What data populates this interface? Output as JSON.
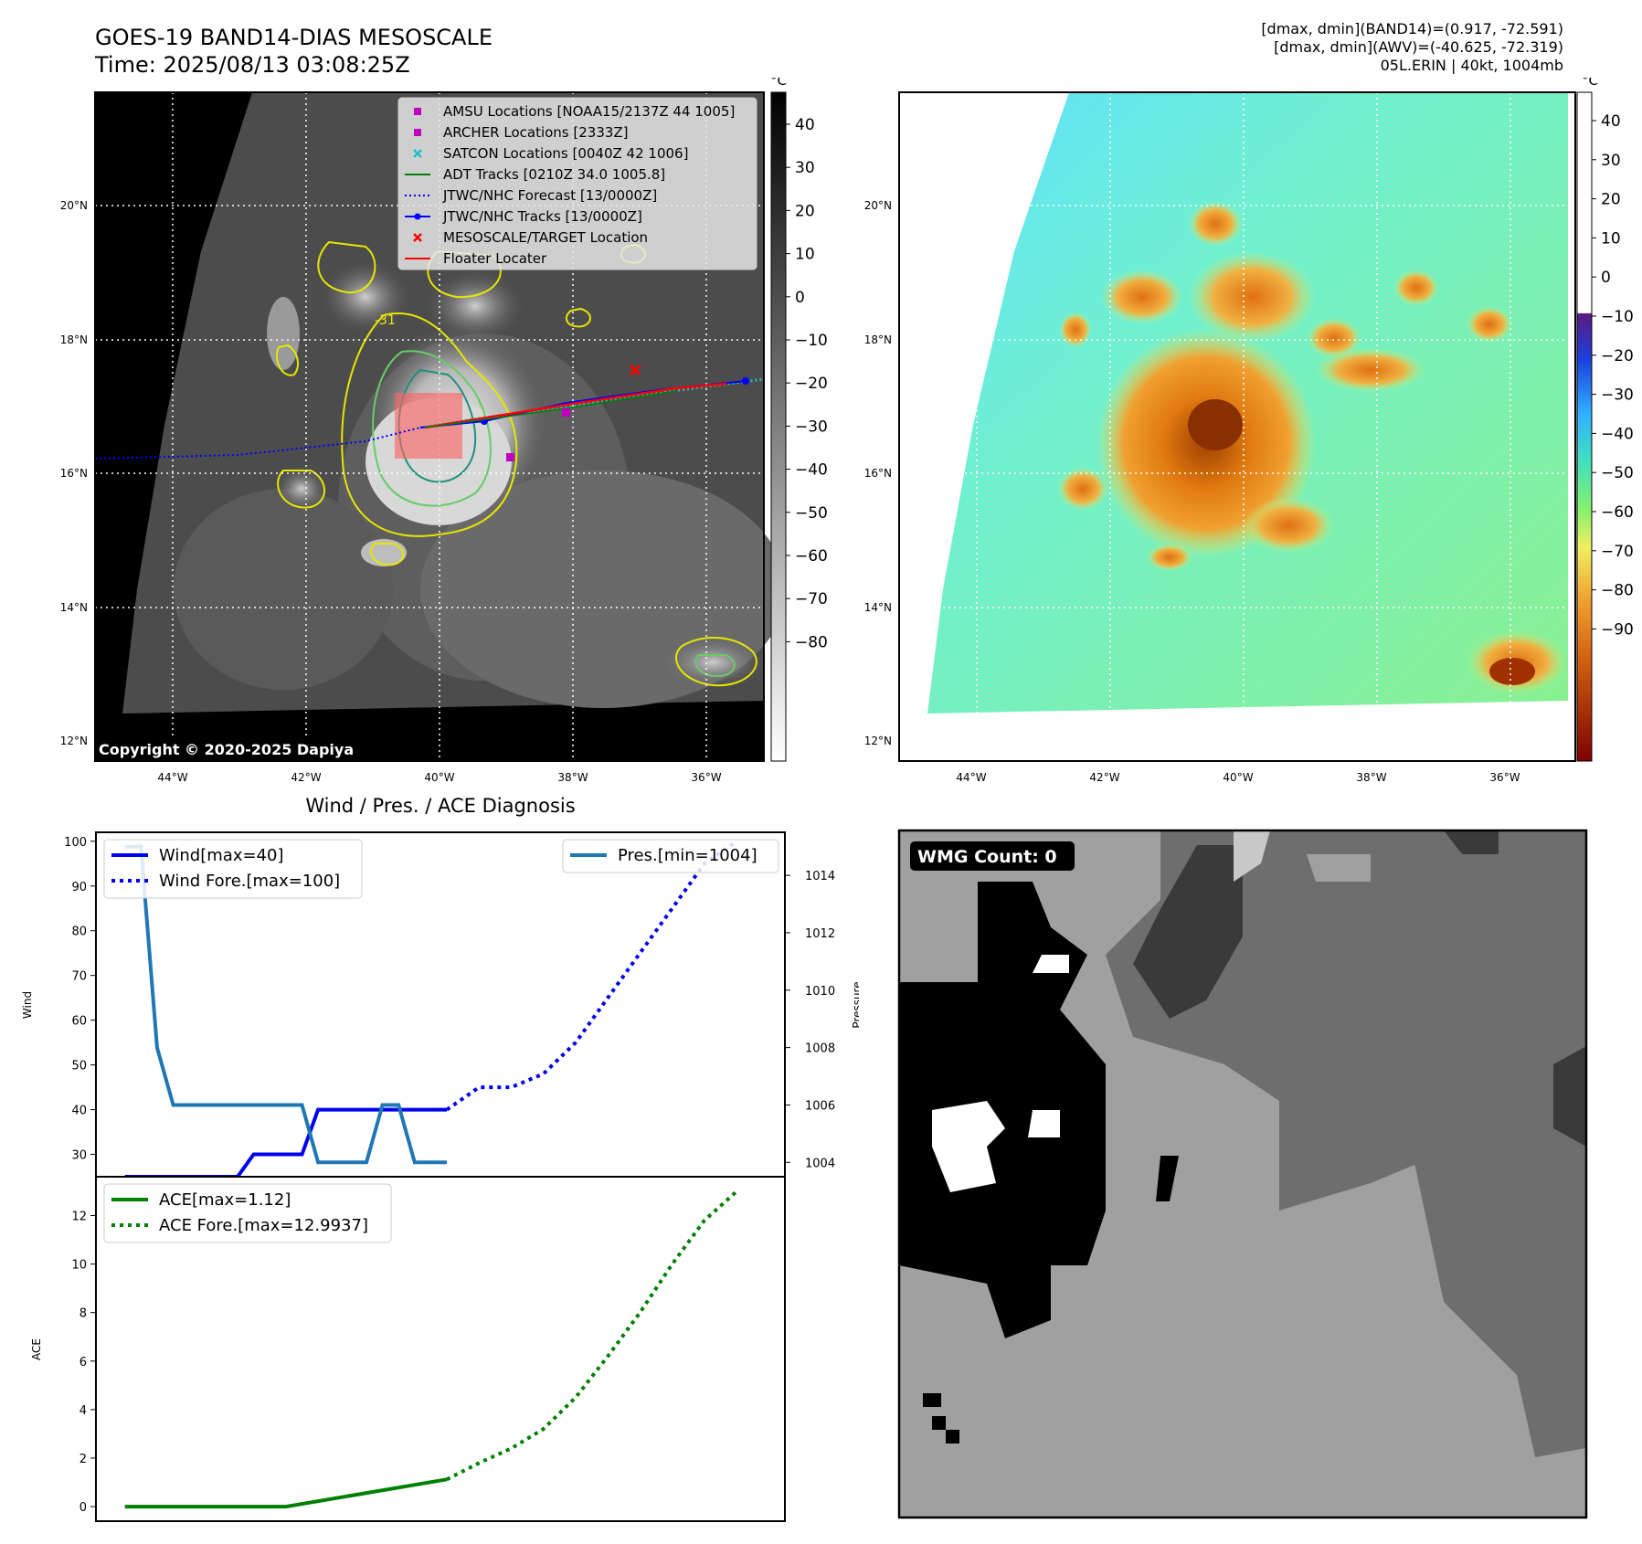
{
  "header": {
    "title_line1": "GOES-19 BAND14-DIAS MESOSCALE",
    "title_line2": "Time: 2025/08/13 03:08:25Z",
    "info_line1": "[dmax, dmin](BAND14)=(0.917, -72.591)",
    "info_line2": "[dmax, dmin](AWV)=(-40.625, -72.319)",
    "info_line3": "05L.ERIN | 40kt, 1004mb"
  },
  "ir_panel": {
    "lat_labels": [
      "20°N",
      "18°N",
      "16°N",
      "14°N",
      "12°N"
    ],
    "lon_labels": [
      "44°W",
      "42°W",
      "40°W",
      "38°W",
      "36°W"
    ],
    "copyright": "Copyright © 2020-2025 Dapiya",
    "contour_label": "-31",
    "legend": [
      {
        "label": "AMSU Locations [NOAA15/2137Z 44 1005]",
        "marker": "square",
        "color": "#c000c0"
      },
      {
        "label": "ARCHER Locations [2333Z]",
        "marker": "square",
        "color": "#c000c0"
      },
      {
        "label": "SATCON Locations [0040Z 42 1006]",
        "marker": "x",
        "color": "#20c0c0"
      },
      {
        "label": "ADT Tracks [0210Z 34.0 1005.8]",
        "marker": "line",
        "color": "#008000"
      },
      {
        "label": "JTWC/NHC Forecast [13/0000Z]",
        "marker": "dotted",
        "color": "#0000ff"
      },
      {
        "label": "JTWC/NHC Tracks [13/0000Z]",
        "marker": "line-dot",
        "color": "#0000ff"
      },
      {
        "label": "MESOSCALE/TARGET Location",
        "marker": "x",
        "color": "#ff0000"
      },
      {
        "label": "Floater Locater",
        "marker": "line",
        "color": "#ff0000"
      }
    ],
    "colorbar_unit": "°C",
    "colorbar_ticks": [
      "40",
      "30",
      "20",
      "10",
      "0",
      "−10",
      "−20",
      "−30",
      "−40",
      "−50",
      "−60",
      "−70",
      "−80"
    ]
  },
  "wv_panel": {
    "lat_labels": [
      "20°N",
      "18°N",
      "16°N",
      "14°N",
      "12°N"
    ],
    "lon_labels": [
      "44°W",
      "42°W",
      "40°W",
      "38°W",
      "36°W"
    ],
    "colorbar_unit": "°C",
    "colorbar_ticks": [
      "40",
      "30",
      "20",
      "10",
      "0",
      "−10",
      "−20",
      "−30",
      "−40",
      "−50",
      "−60",
      "−70",
      "−80",
      "−90"
    ]
  },
  "wmg_panel": {
    "label": "WMG Count: 0"
  },
  "chart_data": [
    {
      "type": "line",
      "title": "Wind / Pres. / ACE Diagnosis",
      "ylabel": "Wind",
      "ylabel_right": "Pressure",
      "ylim": [
        25,
        102
      ],
      "ylim_right": [
        1003.5,
        1015.5
      ],
      "yticks": [
        30,
        40,
        50,
        60,
        70,
        80,
        90,
        100
      ],
      "yticks_right": [
        1004,
        1006,
        1008,
        1010,
        1012,
        1014
      ],
      "legend_left": [
        "Wind[max=40]",
        "Wind Fore.[max=100]"
      ],
      "legend_right": [
        "Pres.[min=1004]"
      ],
      "series": [
        {
          "name": "Wind[max=40]",
          "style": "solid",
          "color": "#0000ee",
          "axis": "left",
          "x": [
            0,
            1,
            2,
            3,
            4,
            5,
            6,
            7,
            8,
            9,
            10,
            11,
            12,
            13,
            14,
            15,
            16,
            17,
            18,
            19,
            20
          ],
          "values": [
            25,
            25,
            25,
            25,
            25,
            25,
            25,
            25,
            30,
            30,
            30,
            30,
            40,
            40,
            40,
            40,
            40,
            40,
            40,
            40,
            40
          ]
        },
        {
          "name": "Wind Fore.[max=100]",
          "style": "dotted",
          "color": "#0000ee",
          "axis": "left",
          "x": [
            20,
            22,
            24,
            26,
            28,
            30,
            32,
            34,
            36,
            38
          ],
          "values": [
            40,
            45,
            45,
            48,
            55,
            65,
            75,
            85,
            95,
            100
          ]
        },
        {
          "name": "Pres.[min=1004]",
          "style": "solid",
          "color": "#1f77b4",
          "axis": "right",
          "x": [
            0,
            1,
            2,
            3,
            4,
            5,
            6,
            7,
            8,
            9,
            10,
            11,
            12,
            13,
            14,
            15,
            16,
            17,
            18,
            19,
            20
          ],
          "values": [
            1015,
            1015,
            1008,
            1006,
            1006,
            1006,
            1006,
            1006,
            1006,
            1006,
            1006,
            1006,
            1004,
            1004,
            1004,
            1004,
            1006,
            1006,
            1004,
            1004,
            1004
          ]
        }
      ]
    },
    {
      "type": "line",
      "ylabel": "ACE",
      "ylim": [
        -0.6,
        13.6
      ],
      "yticks": [
        0,
        2,
        4,
        6,
        8,
        10,
        12
      ],
      "legend": [
        "ACE[max=1.12]",
        "ACE Fore.[max=12.9937]"
      ],
      "series": [
        {
          "name": "ACE[max=1.12]",
          "style": "solid",
          "color": "#008000",
          "x": [
            0,
            10,
            20
          ],
          "values": [
            0,
            0,
            1.12
          ]
        },
        {
          "name": "ACE Fore.[max=12.9937]",
          "style": "dotted",
          "color": "#008000",
          "x": [
            20,
            22,
            24,
            26,
            28,
            30,
            32,
            34,
            36,
            38
          ],
          "values": [
            1.12,
            1.8,
            2.4,
            3.2,
            4.5,
            6.2,
            8.0,
            10.0,
            11.8,
            12.99
          ]
        }
      ]
    }
  ]
}
